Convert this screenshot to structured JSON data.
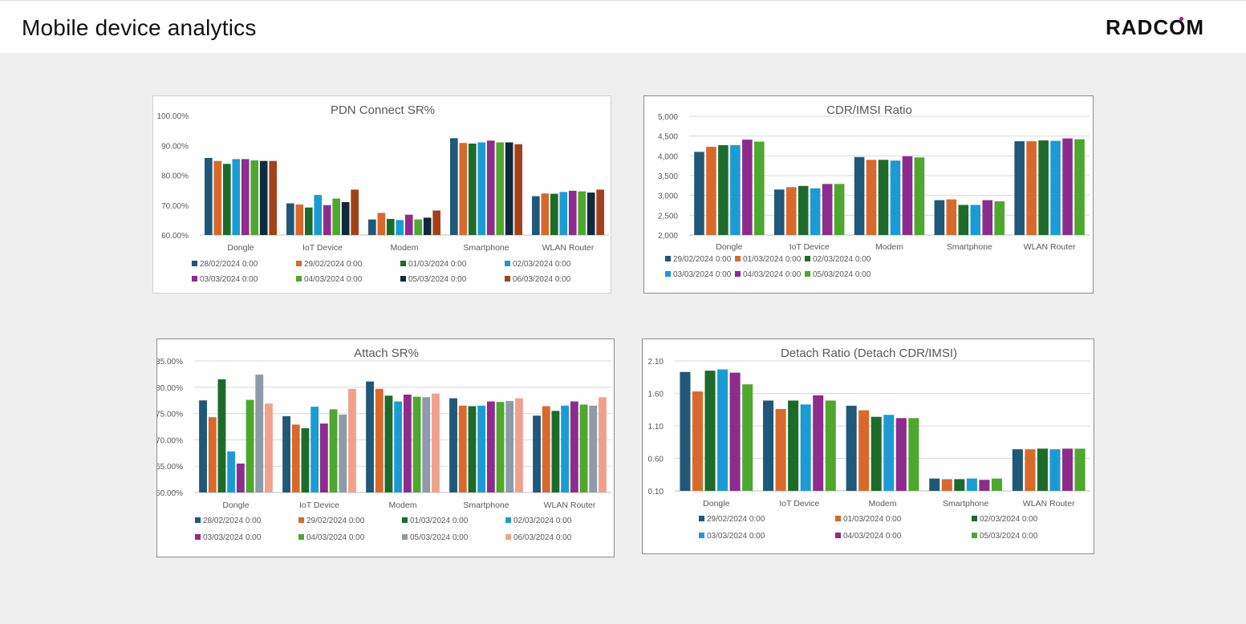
{
  "header": {
    "title": "Mobile device analytics",
    "logo_text": "RADCOM"
  },
  "colors": {
    "accent": "#c2187f",
    "s_navy": "#1f5878",
    "s_orange": "#d9692b",
    "s_dgreen": "#1d6b2b",
    "s_blue": "#1b9bd3",
    "s_purple": "#8e2b8e",
    "s_green": "#4ea72e",
    "s_black": "#0f2a3e",
    "s_brown": "#a1421a",
    "s_gray": "#8e9aa8",
    "s_salmon": "#f0a18c"
  },
  "chart_data": [
    {
      "id": "pdn",
      "type": "bar",
      "title": "PDN Connect SR%",
      "categories": [
        "Dongle",
        "IoT Device",
        "Modem",
        "Smartphone",
        "WLAN Router"
      ],
      "ylim": [
        60,
        100
      ],
      "yticks": [
        "60.00%",
        "70.00%",
        "80.00%",
        "90.00%",
        "100.00%"
      ],
      "grid": false,
      "legend_position": "bottom",
      "legend_cols": 4,
      "series": [
        {
          "name": "28/02/2024 0:00",
          "color": "#1f5878",
          "values": [
            85.8,
            70.6,
            65.2,
            92.4,
            73.0
          ]
        },
        {
          "name": "29/02/2024 0:00",
          "color": "#d9692b",
          "values": [
            84.8,
            70.2,
            67.4,
            90.8,
            73.9
          ]
        },
        {
          "name": "01/03/2024 0:00",
          "color": "#1d6b2b",
          "values": [
            83.8,
            69.2,
            65.4,
            90.6,
            73.8
          ]
        },
        {
          "name": "02/03/2024 0:00",
          "color": "#1b9bd3",
          "values": [
            85.4,
            73.4,
            65.0,
            91.0,
            74.4
          ]
        },
        {
          "name": "03/03/2024 0:00",
          "color": "#8e2b8e",
          "values": [
            85.4,
            70.0,
            66.8,
            91.6,
            74.8
          ]
        },
        {
          "name": "04/03/2024 0:00",
          "color": "#4ea72e",
          "values": [
            85.0,
            72.2,
            65.2,
            91.0,
            74.6
          ]
        },
        {
          "name": "05/03/2024 0:00",
          "color": "#0f2a3e",
          "values": [
            84.8,
            71.0,
            65.8,
            91.0,
            74.2
          ]
        },
        {
          "name": "06/03/2024 0:00",
          "color": "#a1421a",
          "values": [
            84.8,
            75.2,
            68.2,
            90.4,
            75.2
          ]
        }
      ]
    },
    {
      "id": "cdr",
      "type": "bar",
      "title": "CDR/IMSI Ratio",
      "categories": [
        "Dongle",
        "IoT Device",
        "Modem",
        "Smartphone",
        "WLAN Router"
      ],
      "ylim": [
        2000,
        5000
      ],
      "yticks": [
        "2,000",
        "2,500",
        "3,000",
        "3,500",
        "4,000",
        "4,500",
        "5,000"
      ],
      "grid": true,
      "legend_position": "bottom",
      "legend_cols": 3,
      "series": [
        {
          "name": "29/02/2024 0:00",
          "color": "#1f5878",
          "values": [
            4100,
            3150,
            3970,
            2880,
            4370
          ]
        },
        {
          "name": "01/03/2024 0:00",
          "color": "#d9692b",
          "values": [
            4230,
            3210,
            3900,
            2900,
            4370
          ]
        },
        {
          "name": "02/03/2024 0:00",
          "color": "#1d6b2b",
          "values": [
            4270,
            3240,
            3900,
            2760,
            4390
          ]
        },
        {
          "name": "03/03/2024 0:00",
          "color": "#1b9bd3",
          "values": [
            4270,
            3180,
            3880,
            2760,
            4380
          ]
        },
        {
          "name": "04/03/2024 0:00",
          "color": "#8e2b8e",
          "values": [
            4410,
            3290,
            3990,
            2880,
            4440
          ]
        },
        {
          "name": "05/03/2024 0:00",
          "color": "#4ea72e",
          "values": [
            4360,
            3290,
            3960,
            2850,
            4420
          ]
        }
      ]
    },
    {
      "id": "attach",
      "type": "bar",
      "title": "Attach SR%",
      "categories": [
        "Dongle",
        "IoT Device",
        "Modem",
        "Smartphone",
        "WLAN Router"
      ],
      "ylim": [
        60,
        85
      ],
      "yticks": [
        "60.00%",
        "65.00%",
        "70.00%",
        "75.00%",
        "80.00%",
        "85.00%"
      ],
      "grid": true,
      "legend_position": "bottom",
      "legend_cols": 4,
      "series": [
        {
          "name": "28/02/2024 0:00",
          "color": "#1f5878",
          "values": [
            77.5,
            74.5,
            81.1,
            77.9,
            74.6
          ]
        },
        {
          "name": "29/02/2024 0:00",
          "color": "#d9692b",
          "values": [
            74.3,
            72.9,
            79.7,
            76.5,
            76.4
          ]
        },
        {
          "name": "01/03/2024 0:00",
          "color": "#1d6b2b",
          "values": [
            81.5,
            72.2,
            78.4,
            76.4,
            75.5
          ]
        },
        {
          "name": "02/03/2024 0:00",
          "color": "#1b9bd3",
          "values": [
            67.8,
            76.3,
            77.3,
            76.5,
            76.5
          ]
        },
        {
          "name": "03/03/2024 0:00",
          "color": "#8e2b8e",
          "values": [
            65.5,
            73.1,
            78.6,
            77.3,
            77.3
          ]
        },
        {
          "name": "04/03/2024 0:00",
          "color": "#4ea72e",
          "values": [
            77.6,
            75.8,
            78.2,
            77.2,
            76.7
          ]
        },
        {
          "name": "05/03/2024 0:00",
          "color": "#8e9aa8",
          "values": [
            82.4,
            74.8,
            78.1,
            77.4,
            76.5
          ]
        },
        {
          "name": "06/03/2024 0:00",
          "color": "#f0a18c",
          "values": [
            76.9,
            79.7,
            78.8,
            77.9,
            78.1
          ]
        }
      ]
    },
    {
      "id": "detach",
      "type": "bar",
      "title": "Detach Ratio (Detach CDR/IMSI)",
      "categories": [
        "Dongle",
        "IoT Device",
        "Modem",
        "Smartphone",
        "WLAN Router"
      ],
      "ylim": [
        0.1,
        2.1
      ],
      "yticks": [
        "0.10",
        "0.60",
        "1.10",
        "1.60",
        "2.10"
      ],
      "grid": true,
      "legend_position": "bottom",
      "legend_cols": 3,
      "series": [
        {
          "name": "29/02/2024 0:00",
          "color": "#1f5878",
          "values": [
            1.93,
            1.49,
            1.41,
            0.29,
            0.74
          ]
        },
        {
          "name": "01/03/2024 0:00",
          "color": "#d9692b",
          "values": [
            1.63,
            1.36,
            1.34,
            0.28,
            0.74
          ]
        },
        {
          "name": "02/03/2024 0:00",
          "color": "#1d6b2b",
          "values": [
            1.95,
            1.49,
            1.24,
            0.28,
            0.75
          ]
        },
        {
          "name": "03/03/2024 0:00",
          "color": "#1b9bd3",
          "values": [
            1.97,
            1.43,
            1.27,
            0.29,
            0.74
          ]
        },
        {
          "name": "04/03/2024 0:00",
          "color": "#8e2b8e",
          "values": [
            1.92,
            1.57,
            1.22,
            0.27,
            0.75
          ]
        },
        {
          "name": "05/03/2024 0:00",
          "color": "#4ea72e",
          "values": [
            1.74,
            1.49,
            1.22,
            0.29,
            0.75
          ]
        }
      ]
    }
  ]
}
